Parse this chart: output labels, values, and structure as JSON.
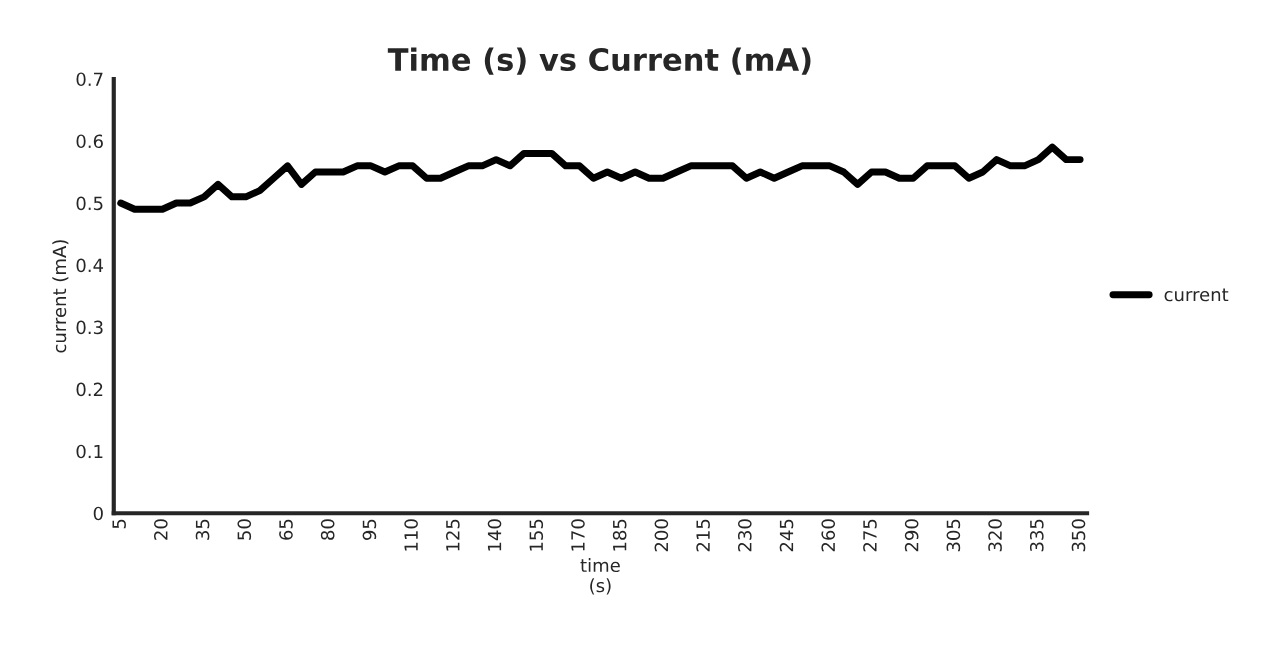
{
  "chart_data": {
    "type": "line",
    "title": "Time (s) vs Current (mA)",
    "xlabel": "time\n(s)",
    "ylabel": "current (mA)",
    "categories": [
      "5",
      null,
      null,
      "20",
      null,
      null,
      "35",
      null,
      null,
      "50",
      null,
      null,
      "65",
      null,
      null,
      "80",
      null,
      null,
      "95",
      null,
      null,
      "110",
      null,
      null,
      "125",
      null,
      null,
      "140",
      null,
      null,
      "155",
      null,
      null,
      "170",
      null,
      null,
      "185",
      null,
      null,
      "200",
      null,
      null,
      "215",
      null,
      null,
      "230",
      null,
      null,
      "245",
      null,
      null,
      "260",
      null,
      null,
      "275",
      null,
      null,
      "290",
      null,
      null,
      "305",
      null,
      null,
      "320",
      null,
      null,
      "335",
      null,
      null,
      "350"
    ],
    "series": [
      {
        "name": "current",
        "color": "#000000",
        "values": [
          0.5,
          0.49,
          0.49,
          0.49,
          0.5,
          0.5,
          0.51,
          0.53,
          0.51,
          0.51,
          0.52,
          0.54,
          0.56,
          0.53,
          0.55,
          0.55,
          0.55,
          0.56,
          0.56,
          0.55,
          0.56,
          0.56,
          0.54,
          0.54,
          0.55,
          0.56,
          0.56,
          0.57,
          0.56,
          0.58,
          0.58,
          0.58,
          0.56,
          0.56,
          0.54,
          0.55,
          0.54,
          0.55,
          0.54,
          0.54,
          0.55,
          0.56,
          0.56,
          0.56,
          0.56,
          0.54,
          0.55,
          0.54,
          0.55,
          0.56,
          0.56,
          0.56,
          0.55,
          0.53,
          0.55,
          0.55,
          0.54,
          0.54,
          0.56,
          0.56,
          0.56,
          0.54,
          0.55,
          0.57,
          0.56,
          0.56,
          0.57,
          0.59,
          0.57,
          0.57
        ]
      }
    ],
    "ylim": [
      0,
      0.7
    ],
    "yticks": [
      0,
      0.1,
      0.2,
      0.3,
      0.4,
      0.5,
      0.6,
      0.7
    ],
    "grid": false,
    "legend": "right",
    "marker": "none",
    "line_style": "solid"
  }
}
